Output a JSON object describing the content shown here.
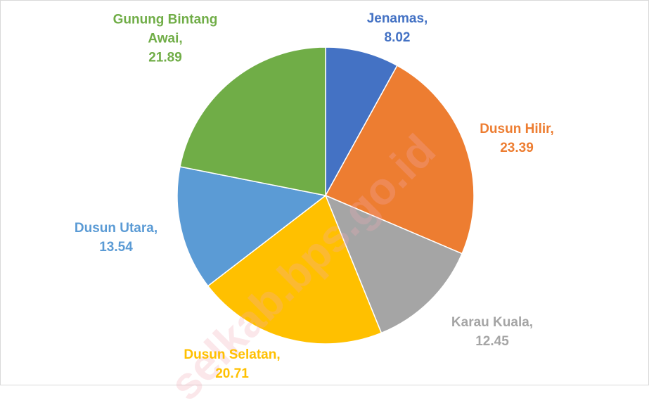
{
  "chart_data": {
    "type": "pie",
    "categories": [
      "Jenamas,",
      "Dusun Hilir,",
      "Karau Kuala,",
      "Dusun Selatan,",
      "Dusun Utara,",
      "Gunung Bintang Awai,"
    ],
    "values": [
      8.02,
      23.39,
      12.45,
      20.71,
      13.54,
      21.89
    ],
    "colors": [
      "#4472c4",
      "#ed7d31",
      "#a5a5a5",
      "#ffc000",
      "#5b9bd5",
      "#70ad47"
    ],
    "watermark": "selkab.bps.go.id"
  }
}
